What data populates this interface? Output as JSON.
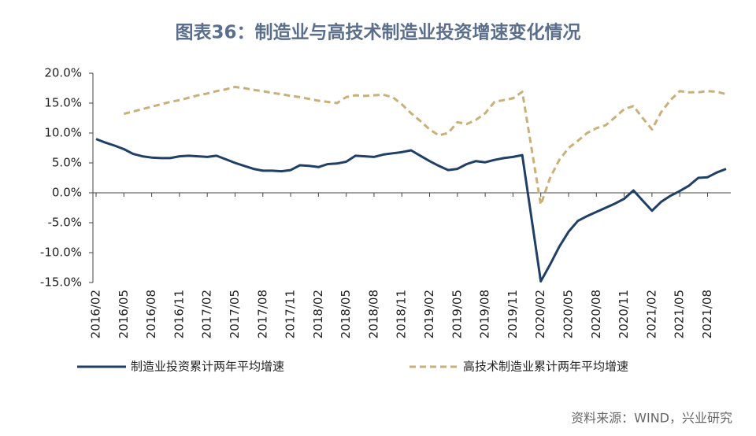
{
  "chart_data": {
    "type": "line",
    "title": "图表36：制造业与高技术制造业投资增速变化情况",
    "source": "资料来源：WIND，兴业研究",
    "categories": [
      "2016/02",
      null,
      null,
      "2016/05",
      null,
      null,
      "2016/08",
      null,
      null,
      "2016/11",
      null,
      null,
      "2017/02",
      null,
      null,
      "2017/05",
      null,
      null,
      "2017/08",
      null,
      null,
      "2017/11",
      null,
      null,
      "2018/02",
      null,
      null,
      "2018/05",
      null,
      null,
      "2018/08",
      null,
      null,
      "2018/11",
      null,
      null,
      "2019/02",
      null,
      null,
      "2019/05",
      null,
      null,
      "2019/08",
      null,
      null,
      "2019/11",
      null,
      null,
      "2020/02",
      null,
      null,
      "2020/05",
      null,
      null,
      "2020/08",
      null,
      null,
      "2020/11",
      null,
      null,
      "2021/02",
      null,
      null,
      "2021/05",
      null,
      null,
      "2021/08",
      null,
      null
    ],
    "series": [
      {
        "name": "制造业投资累计两年平均增速",
        "color": "#1f3f66",
        "dashed": false,
        "values": [
          9.0,
          8.4,
          7.9,
          7.3,
          6.5,
          6.1,
          5.9,
          5.8,
          5.8,
          6.1,
          6.2,
          6.1,
          6.0,
          6.2,
          5.6,
          5.0,
          4.5,
          4.0,
          3.7,
          3.7,
          3.6,
          3.8,
          4.6,
          4.5,
          4.3,
          4.8,
          4.9,
          5.2,
          6.2,
          6.1,
          6.0,
          6.4,
          6.6,
          6.8,
          7.1,
          6.2,
          5.3,
          4.5,
          3.8,
          4.0,
          4.8,
          5.3,
          5.1,
          5.5,
          5.8,
          6.0,
          6.3,
          -4.2,
          -14.8,
          -12,
          -9,
          -6.5,
          -4.7,
          -3.9,
          -3.2,
          -2.5,
          -1.8,
          -1.0,
          0.4,
          -1.3,
          -3.0,
          -1.5,
          -0.5,
          0.3,
          1.2,
          2.5,
          2.6,
          3.4,
          4.0
        ]
      },
      {
        "name": "高技术制造业累计两年平均增速",
        "color": "#c9b07a",
        "dashed": true,
        "values": [
          null,
          null,
          null,
          13.2,
          13.6,
          14.0,
          14.4,
          14.8,
          15.2,
          15.5,
          15.9,
          16.3,
          16.6,
          17.0,
          17.3,
          17.7,
          17.5,
          17.2,
          17.0,
          16.7,
          16.5,
          16.2,
          16.0,
          15.7,
          15.4,
          15.2,
          15.0,
          16.0,
          16.3,
          16.2,
          16.3,
          16.4,
          16.0,
          14.8,
          13.3,
          12.0,
          10.6,
          9.6,
          10.0,
          11.8,
          11.5,
          12.2,
          13.3,
          15.2,
          15.5,
          15.8,
          16.9,
          7.5,
          -2.0,
          2.5,
          5.5,
          7.5,
          8.7,
          10.0,
          10.8,
          11.3,
          12.6,
          14.0,
          14.5,
          12.5,
          10.6,
          13.5,
          15.5,
          17.0,
          16.8,
          16.8,
          17.0,
          16.9,
          16.5
        ]
      }
    ],
    "ylim": [
      -15,
      20
    ],
    "yticks": [
      {
        "value": -15,
        "label": "-15.0%"
      },
      {
        "value": -10,
        "label": "-10.0%"
      },
      {
        "value": -5,
        "label": "-5.0%"
      },
      {
        "value": 0,
        "label": "0.0%"
      },
      {
        "value": 5,
        "label": "5.0%"
      },
      {
        "value": 10,
        "label": "10.0%"
      },
      {
        "value": 15,
        "label": "15.0%"
      },
      {
        "value": 20,
        "label": "20.0%"
      }
    ],
    "grid": false,
    "legend": "bottom"
  }
}
